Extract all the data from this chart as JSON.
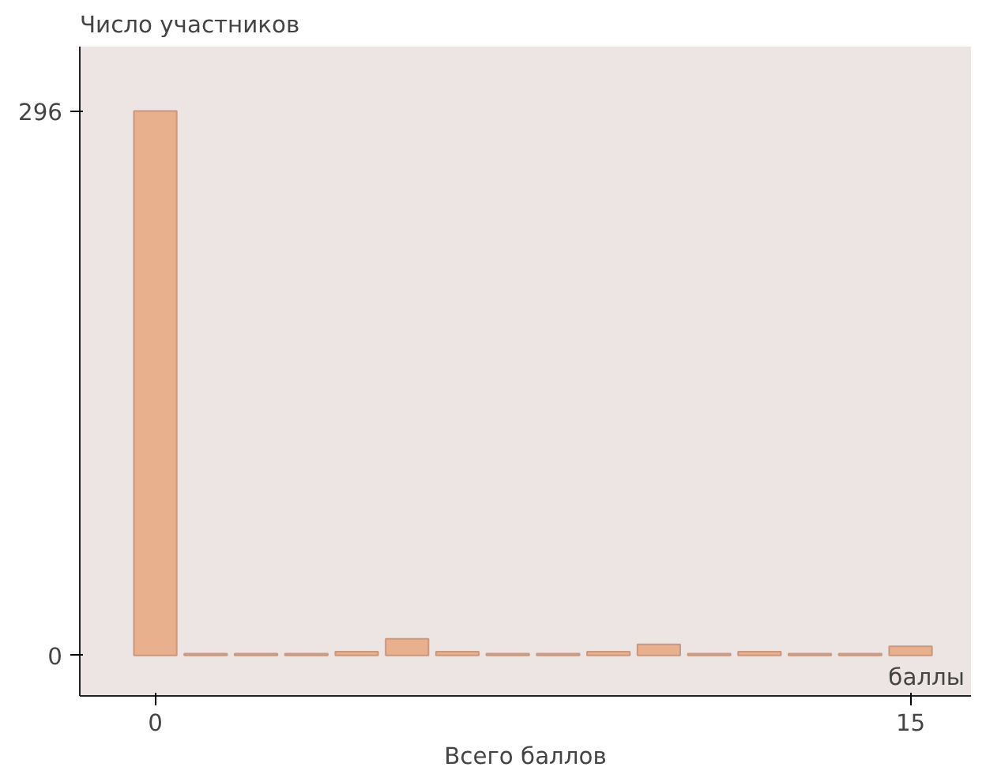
{
  "chart_data": {
    "type": "bar",
    "ylabel": "Число участников",
    "xlabel": "Всего баллов",
    "annotations": [
      "баллы"
    ],
    "x": [
      0,
      1,
      2,
      3,
      4,
      5,
      6,
      7,
      8,
      9,
      10,
      11,
      12,
      13,
      14,
      15
    ],
    "values": [
      296,
      1,
      1,
      1,
      2,
      9,
      2,
      1,
      1,
      2,
      6,
      1,
      2,
      1,
      1,
      5
    ],
    "color": "#e8b08c",
    "xlim": [
      -1.5,
      16.2
    ],
    "ylim": [
      -22,
      331
    ],
    "xticks": [
      0,
      15
    ],
    "yticks": [
      0,
      296
    ],
    "grid": false
  }
}
